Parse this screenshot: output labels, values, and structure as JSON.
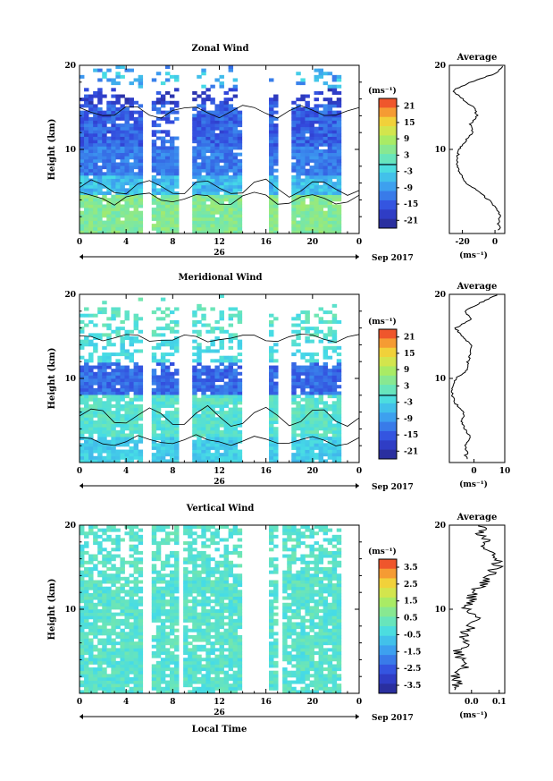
{
  "chart_data": [
    {
      "type": "heatmap",
      "title": "Zonal Wind",
      "ylabel": "Height (km)",
      "ylim": [
        0,
        20
      ],
      "xlim": [
        0,
        24
      ],
      "x_ticks": [
        "0",
        "4",
        "8",
        "12",
        "16",
        "20",
        "0"
      ],
      "y_ticks": [
        "20",
        "10"
      ],
      "date_label": "26",
      "month_label": "Sep 2017",
      "colorbar": {
        "unit": "(ms⁻¹)",
        "ticks": [
          "21",
          "15",
          "9",
          "3",
          "-3",
          "-9",
          "-15",
          "-21"
        ]
      },
      "data_gaps_hours": [
        [
          5.4,
          6.0
        ],
        [
          8.4,
          9.8
        ],
        [
          14.0,
          16.2
        ],
        [
          17.0,
          18.0
        ],
        [
          22.4,
          24.0
        ]
      ],
      "average": {
        "title": "Average",
        "xlabel": "(ms⁻¹)",
        "x_ticks": [
          "-20",
          "0"
        ],
        "y_ticks": [
          "20",
          "10"
        ],
        "xlim": [
          -28,
          6
        ],
        "heights_km": [
          1,
          2,
          3,
          4,
          5,
          6,
          7,
          8,
          9,
          10,
          11,
          12,
          13,
          14,
          15,
          16,
          17,
          18,
          19,
          20
        ],
        "values": [
          2,
          3,
          1,
          -4,
          -10,
          -18,
          -21,
          -23,
          -23,
          -22,
          -18,
          -14,
          -15,
          -11,
          -13,
          -20,
          -26,
          -15,
          0,
          5
        ]
      }
    },
    {
      "type": "heatmap",
      "title": "Meridional Wind",
      "ylabel": "Height (km)",
      "ylim": [
        0,
        20
      ],
      "xlim": [
        0,
        24
      ],
      "x_ticks": [
        "0",
        "4",
        "8",
        "12",
        "16",
        "20",
        "0"
      ],
      "y_ticks": [
        "20",
        "10"
      ],
      "date_label": "26",
      "month_label": "Sep 2017",
      "colorbar": {
        "unit": "(ms⁻¹)",
        "ticks": [
          "21",
          "15",
          "9",
          "3",
          "-3",
          "-9",
          "-15",
          "-21"
        ]
      },
      "data_gaps_hours": [
        [
          5.4,
          6.0
        ],
        [
          8.4,
          9.8
        ],
        [
          14.0,
          16.2
        ],
        [
          17.0,
          18.0
        ],
        [
          22.4,
          24.0
        ]
      ],
      "average": {
        "title": "Average",
        "xlabel": "(ms⁻¹)",
        "x_ticks": [
          "0",
          "10"
        ],
        "y_ticks": [
          "20",
          "10"
        ],
        "xlim": [
          -8,
          10
        ],
        "heights_km": [
          1,
          2,
          3,
          4,
          5,
          6,
          7,
          8,
          9,
          10,
          11,
          12,
          13,
          14,
          15,
          16,
          17,
          18,
          19,
          20
        ],
        "values": [
          -2,
          -3,
          -1,
          -3,
          -4,
          -3,
          -6,
          -7,
          -7,
          -6,
          -2,
          -2,
          -1,
          -1,
          -4,
          -6,
          -1,
          -3,
          2,
          8
        ]
      }
    },
    {
      "type": "heatmap",
      "title": "Vertical Wind",
      "ylabel": "Height (km)",
      "xlabel": "Local Time",
      "ylim": [
        0,
        20
      ],
      "xlim": [
        0,
        24
      ],
      "x_ticks": [
        "0",
        "4",
        "8",
        "12",
        "16",
        "20",
        "0"
      ],
      "y_ticks": [
        "20",
        "10"
      ],
      "date_label": "26",
      "month_label": "Sep 2017",
      "colorbar": {
        "unit": "(ms⁻¹)",
        "ticks": [
          "3.5",
          "2.5",
          "1.5",
          "0.5",
          "-0.5",
          "-1.5",
          "-2.5",
          "-3.5"
        ]
      },
      "data_gaps_hours": [
        [
          5.4,
          6.0
        ],
        [
          8.4,
          9.0
        ],
        [
          14.0,
          16.2
        ],
        [
          17.0,
          17.6
        ],
        [
          22.6,
          24.0
        ]
      ],
      "average": {
        "title": "Average",
        "xlabel": "(ms⁻¹)",
        "x_ticks": [
          "0.0",
          "0.1"
        ],
        "y_ticks": [
          "20",
          "10"
        ],
        "xlim": [
          -0.08,
          0.12
        ],
        "heights_km": [
          1,
          2,
          3,
          4,
          5,
          6,
          7,
          8,
          9,
          10,
          11,
          12,
          13,
          14,
          15,
          16,
          17,
          18,
          19,
          20
        ],
        "values": [
          -0.05,
          -0.06,
          -0.02,
          -0.04,
          -0.05,
          -0.01,
          -0.03,
          0.0,
          0.02,
          -0.02,
          0.0,
          0.01,
          0.04,
          0.06,
          0.09,
          0.1,
          0.05,
          0.06,
          0.03,
          0.04
        ]
      }
    }
  ]
}
